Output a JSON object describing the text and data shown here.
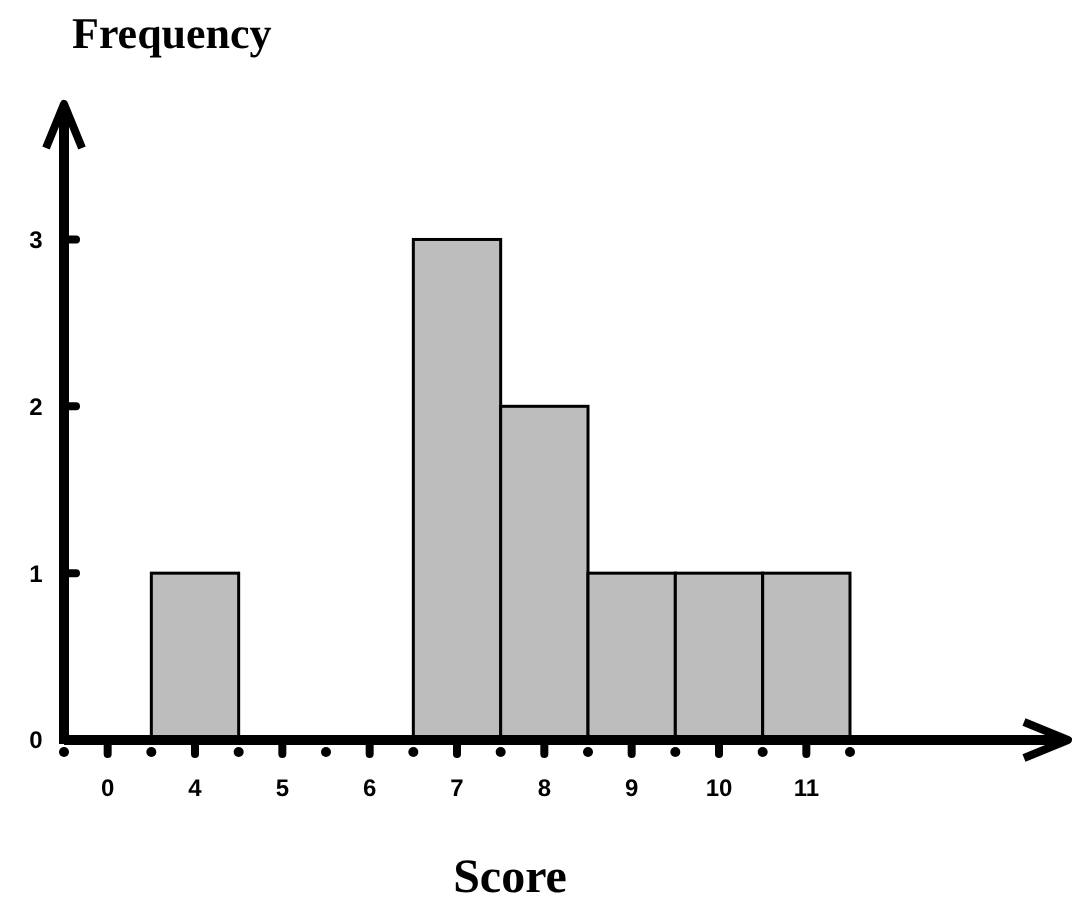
{
  "chart_data": {
    "type": "bar",
    "title": "Frequency",
    "xlabel": "Score",
    "categories": [
      "0",
      "4",
      "5",
      "6",
      "7",
      "8",
      "9",
      "10",
      "11"
    ],
    "values": [
      0,
      1,
      0,
      0,
      3,
      2,
      1,
      1,
      1
    ],
    "color": "#bdbdbd",
    "ylim": [
      0,
      3.8
    ],
    "yticks": [
      0,
      1,
      2,
      3
    ]
  }
}
